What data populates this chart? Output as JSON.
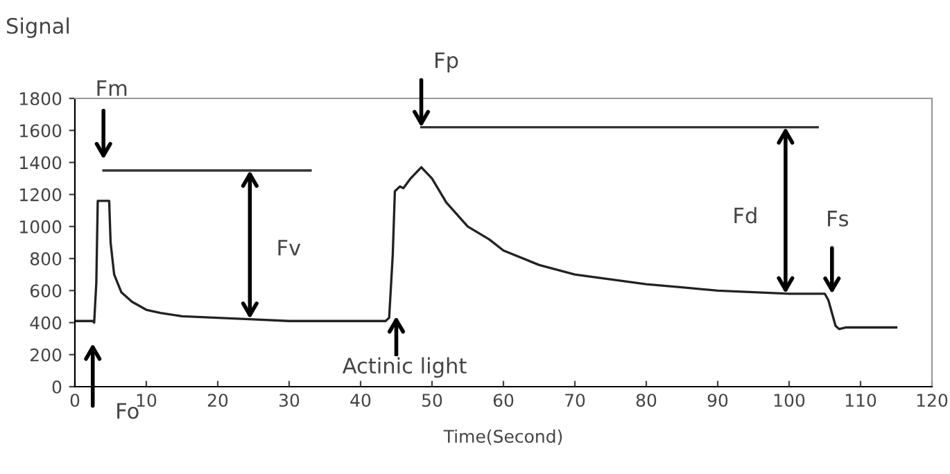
{
  "chart_data": {
    "type": "line",
    "ylabel": "Signal",
    "xlabel": "Time(Second)",
    "xlim": [
      0,
      120
    ],
    "xticks": [
      0,
      10,
      20,
      30,
      40,
      50,
      60,
      70,
      80,
      90,
      100,
      110,
      120
    ],
    "ylim": [
      0,
      1800
    ],
    "yticks": [
      0,
      200,
      400,
      600,
      800,
      1000,
      1200,
      1400,
      1600,
      1800
    ],
    "grid": false,
    "marker": "none",
    "line_style": "solid",
    "series": [
      {
        "color": "#222222",
        "x": [
          0,
          2.5,
          2.7,
          3,
          3.2,
          4.8,
          5,
          5.5,
          6.5,
          8,
          10,
          12,
          15,
          20,
          25,
          30,
          43.5,
          44,
          44.5,
          44.8,
          45.5,
          46,
          47,
          48.5,
          50,
          52,
          55,
          58,
          60,
          65,
          70,
          75,
          80,
          85,
          90,
          95,
          100,
          105,
          105.5,
          106.5,
          107,
          108,
          115
        ],
        "values": [
          410,
          410,
          400,
          650,
          1160,
          1160,
          900,
          700,
          590,
          530,
          480,
          460,
          440,
          430,
          420,
          410,
          410,
          430,
          820,
          1220,
          1250,
          1240,
          1300,
          1370,
          1300,
          1150,
          1000,
          920,
          850,
          760,
          700,
          670,
          640,
          620,
          600,
          590,
          580,
          580,
          540,
          380,
          360,
          370,
          370
        ]
      },
      {
        "color": "#333333",
        "x": [
          4,
          33
        ],
        "values": [
          1350,
          1350
        ]
      },
      {
        "color": "#333333",
        "x": [
          48.5,
          104
        ],
        "values": [
          1620,
          1620
        ]
      }
    ],
    "annotations": [
      "Fm",
      "Fo",
      "Fv",
      "Actinic light",
      {
        "text": "Fp",
        "x": 48.5,
        "y": 1620
      },
      "Fd",
      {
        "text": "Fs",
        "x": 106,
        "y": 580
      }
    ]
  }
}
